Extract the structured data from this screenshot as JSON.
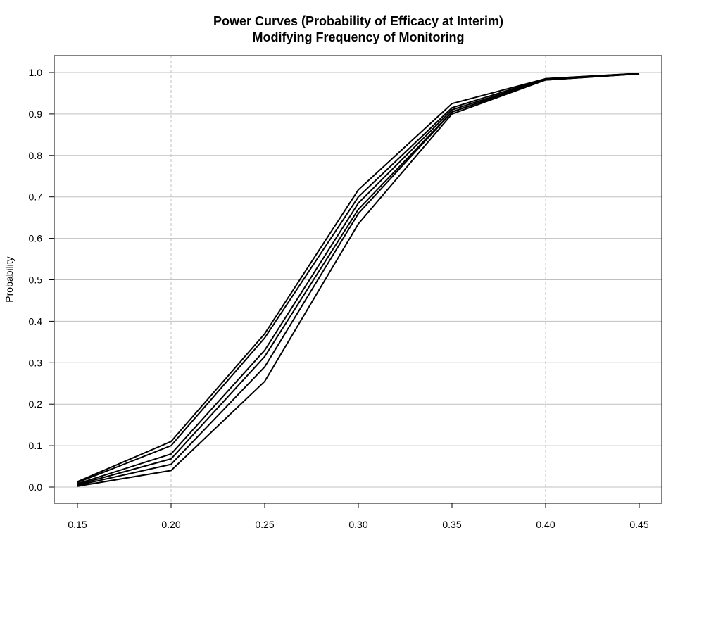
{
  "chart_data": {
    "type": "line",
    "title_line1": "Power Curves (Probability of Efficacy at Interim)",
    "title_line2": "Modifying Frequency of Monitoring",
    "xlabel": "",
    "ylabel": "Probability",
    "xlim": [
      0.15,
      0.45
    ],
    "ylim": [
      0.0,
      1.0
    ],
    "x_ticks": [
      "0.15",
      "0.20",
      "0.25",
      "0.30",
      "0.35",
      "0.40",
      "0.45"
    ],
    "y_ticks": [
      "0.0",
      "0.1",
      "0.2",
      "0.3",
      "0.4",
      "0.5",
      "0.6",
      "0.7",
      "0.8",
      "0.9",
      "1.0"
    ],
    "x_vertical_gridlines": [
      0.2,
      0.4
    ],
    "horizontal_grid": true,
    "line_color": "#000000",
    "grid_color": "#c0c0c0",
    "x": [
      0.15,
      0.2,
      0.25,
      0.3,
      0.35,
      0.4,
      0.45
    ],
    "series": [
      {
        "values": [
          0.013,
          0.11,
          0.37,
          0.717,
          0.925,
          0.985,
          0.998
        ]
      },
      {
        "values": [
          0.011,
          0.1,
          0.36,
          0.7,
          0.915,
          0.985,
          0.998
        ]
      },
      {
        "values": [
          0.008,
          0.08,
          0.33,
          0.685,
          0.91,
          0.983,
          0.997
        ]
      },
      {
        "values": [
          0.006,
          0.068,
          0.315,
          0.67,
          0.905,
          0.983,
          0.997
        ]
      },
      {
        "values": [
          0.004,
          0.055,
          0.29,
          0.66,
          0.905,
          0.982,
          0.997
        ]
      },
      {
        "values": [
          0.002,
          0.04,
          0.255,
          0.635,
          0.9,
          0.982,
          0.997
        ]
      }
    ]
  }
}
